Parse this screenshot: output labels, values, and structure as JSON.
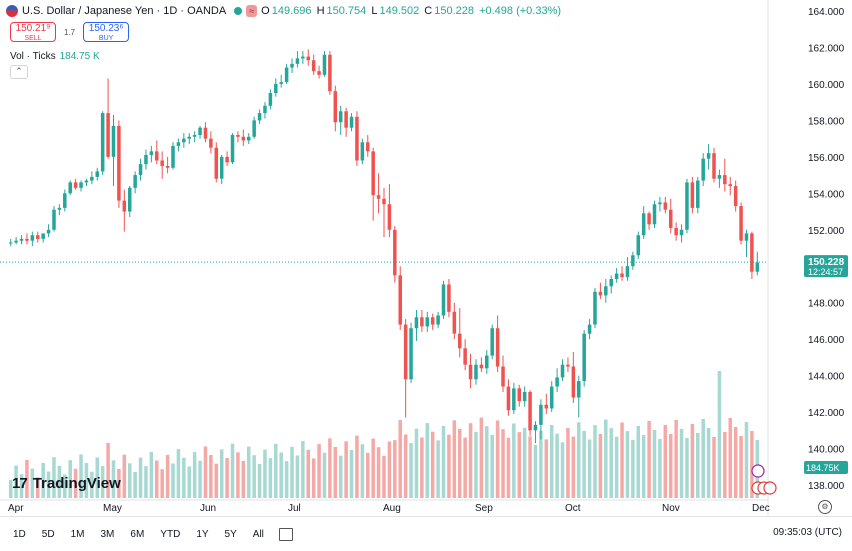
{
  "header": {
    "title": "U.S. Dollar / Japanese Yen · 1D · OANDA",
    "open_label": "O",
    "open": "149.696",
    "high_label": "H",
    "high": "150.754",
    "low_label": "L",
    "low": "149.502",
    "close_label": "C",
    "close": "150.228",
    "change": "+0.498 (+0.33%)"
  },
  "trade": {
    "sell_price": "150.21⁹",
    "sell_label": "SELL",
    "spread": "1.7",
    "buy_price": "150.23⁶",
    "buy_label": "BUY"
  },
  "volume_legend": {
    "label": "Vol · Ticks",
    "value": "184.75 K"
  },
  "brand": "TradingView",
  "timeframes": [
    "1D",
    "5D",
    "1M",
    "3M",
    "6M",
    "YTD",
    "1Y",
    "5Y",
    "All"
  ],
  "clock": "09:35:03 (UTC)",
  "colors": {
    "up": "#26a69a",
    "down": "#ef5350",
    "vol_up": "#a7d8d2",
    "vol_down": "#f5a9a7",
    "price_line": "#26a69a"
  },
  "chart_data": {
    "type": "candlestick",
    "title": "U.S. Dollar / Japanese Yen · 1D · OANDA",
    "price_axis": {
      "ticks": [
        138,
        140,
        142,
        144,
        146,
        148,
        150,
        152,
        154,
        156,
        158,
        160,
        162,
        164
      ],
      "range": [
        137,
        164.5
      ]
    },
    "x_ticks": [
      "Apr",
      "May",
      "Jun",
      "Jul",
      "Aug",
      "Sep",
      "Oct",
      "Nov",
      "Dec"
    ],
    "last_price": {
      "value": "150.228",
      "countdown": "12:24:57"
    },
    "volume_last": "184.75K",
    "candles": [
      {
        "o": 151.3,
        "h": 151.5,
        "l": 151.1,
        "c": 151.3
      },
      {
        "o": 151.3,
        "h": 151.6,
        "l": 151.2,
        "c": 151.4
      },
      {
        "o": 151.4,
        "h": 151.7,
        "l": 151.2,
        "c": 151.5
      },
      {
        "o": 151.5,
        "h": 151.8,
        "l": 151.2,
        "c": 151.4
      },
      {
        "o": 151.4,
        "h": 151.9,
        "l": 151.1,
        "c": 151.7
      },
      {
        "o": 151.7,
        "h": 151.9,
        "l": 151.3,
        "c": 151.5
      },
      {
        "o": 151.5,
        "h": 151.8,
        "l": 151.3,
        "c": 151.8
      },
      {
        "o": 151.8,
        "h": 152.3,
        "l": 151.6,
        "c": 152.0
      },
      {
        "o": 152.0,
        "h": 153.3,
        "l": 151.9,
        "c": 153.1
      },
      {
        "o": 153.1,
        "h": 153.4,
        "l": 152.8,
        "c": 153.2
      },
      {
        "o": 153.2,
        "h": 154.2,
        "l": 153.0,
        "c": 154.0
      },
      {
        "o": 154.0,
        "h": 154.7,
        "l": 153.9,
        "c": 154.6
      },
      {
        "o": 154.6,
        "h": 154.8,
        "l": 154.2,
        "c": 154.3
      },
      {
        "o": 154.3,
        "h": 154.7,
        "l": 154.1,
        "c": 154.6
      },
      {
        "o": 154.6,
        "h": 154.8,
        "l": 154.4,
        "c": 154.7
      },
      {
        "o": 154.7,
        "h": 155.2,
        "l": 154.5,
        "c": 154.9
      },
      {
        "o": 154.9,
        "h": 155.4,
        "l": 154.7,
        "c": 155.2
      },
      {
        "o": 155.2,
        "h": 158.5,
        "l": 155.0,
        "c": 158.4
      },
      {
        "o": 158.4,
        "h": 160.3,
        "l": 155.9,
        "c": 156.0
      },
      {
        "o": 156.0,
        "h": 158.3,
        "l": 154.4,
        "c": 157.7
      },
      {
        "o": 157.7,
        "h": 158.0,
        "l": 153.2,
        "c": 153.6
      },
      {
        "o": 153.6,
        "h": 154.2,
        "l": 151.9,
        "c": 153.0
      },
      {
        "o": 153.0,
        "h": 154.4,
        "l": 152.7,
        "c": 154.3
      },
      {
        "o": 154.3,
        "h": 155.2,
        "l": 154.0,
        "c": 155.0
      },
      {
        "o": 155.0,
        "h": 155.9,
        "l": 154.7,
        "c": 155.6
      },
      {
        "o": 155.6,
        "h": 156.4,
        "l": 155.3,
        "c": 156.1
      },
      {
        "o": 156.1,
        "h": 156.6,
        "l": 155.7,
        "c": 156.3
      },
      {
        "o": 156.3,
        "h": 156.9,
        "l": 155.6,
        "c": 155.8
      },
      {
        "o": 155.8,
        "h": 156.3,
        "l": 154.8,
        "c": 155.5
      },
      {
        "o": 155.5,
        "h": 156.0,
        "l": 155.1,
        "c": 155.4
      },
      {
        "o": 155.4,
        "h": 156.8,
        "l": 155.3,
        "c": 156.6
      },
      {
        "o": 156.6,
        "h": 157.0,
        "l": 156.3,
        "c": 156.8
      },
      {
        "o": 156.8,
        "h": 157.3,
        "l": 156.5,
        "c": 157.0
      },
      {
        "o": 157.0,
        "h": 157.3,
        "l": 156.7,
        "c": 157.1
      },
      {
        "o": 157.1,
        "h": 157.4,
        "l": 156.8,
        "c": 157.2
      },
      {
        "o": 157.2,
        "h": 157.7,
        "l": 157.0,
        "c": 157.6
      },
      {
        "o": 157.6,
        "h": 157.9,
        "l": 156.8,
        "c": 157.0
      },
      {
        "o": 157.0,
        "h": 157.4,
        "l": 156.2,
        "c": 156.5
      },
      {
        "o": 156.5,
        "h": 156.8,
        "l": 154.6,
        "c": 154.8
      },
      {
        "o": 154.8,
        "h": 156.1,
        "l": 154.5,
        "c": 156.0
      },
      {
        "o": 156.0,
        "h": 156.3,
        "l": 155.5,
        "c": 155.7
      },
      {
        "o": 155.7,
        "h": 157.3,
        "l": 155.6,
        "c": 157.2
      },
      {
        "o": 157.2,
        "h": 157.4,
        "l": 156.8,
        "c": 157.1
      },
      {
        "o": 157.1,
        "h": 157.5,
        "l": 156.6,
        "c": 156.9
      },
      {
        "o": 156.9,
        "h": 157.3,
        "l": 156.7,
        "c": 157.1
      },
      {
        "o": 157.1,
        "h": 158.2,
        "l": 157.0,
        "c": 158.0
      },
      {
        "o": 158.0,
        "h": 158.6,
        "l": 157.8,
        "c": 158.4
      },
      {
        "o": 158.4,
        "h": 159.0,
        "l": 158.1,
        "c": 158.8
      },
      {
        "o": 158.8,
        "h": 159.7,
        "l": 158.6,
        "c": 159.5
      },
      {
        "o": 159.5,
        "h": 160.3,
        "l": 159.3,
        "c": 160.0
      },
      {
        "o": 160.0,
        "h": 160.5,
        "l": 159.8,
        "c": 160.1
      },
      {
        "o": 160.1,
        "h": 161.1,
        "l": 160.0,
        "c": 160.9
      },
      {
        "o": 160.9,
        "h": 161.4,
        "l": 160.6,
        "c": 161.1
      },
      {
        "o": 161.1,
        "h": 161.8,
        "l": 160.9,
        "c": 161.4
      },
      {
        "o": 161.4,
        "h": 161.8,
        "l": 161.1,
        "c": 161.5
      },
      {
        "o": 161.5,
        "h": 161.9,
        "l": 161.0,
        "c": 161.3
      },
      {
        "o": 161.3,
        "h": 161.6,
        "l": 160.5,
        "c": 160.7
      },
      {
        "o": 160.7,
        "h": 161.0,
        "l": 160.3,
        "c": 160.5
      },
      {
        "o": 160.5,
        "h": 161.8,
        "l": 160.4,
        "c": 161.6
      },
      {
        "o": 161.6,
        "h": 161.8,
        "l": 159.4,
        "c": 159.6
      },
      {
        "o": 159.6,
        "h": 159.9,
        "l": 157.4,
        "c": 157.9
      },
      {
        "o": 157.9,
        "h": 158.8,
        "l": 157.2,
        "c": 158.5
      },
      {
        "o": 158.5,
        "h": 158.7,
        "l": 157.1,
        "c": 157.6
      },
      {
        "o": 157.6,
        "h": 158.4,
        "l": 157.4,
        "c": 158.2
      },
      {
        "o": 158.2,
        "h": 158.5,
        "l": 155.5,
        "c": 155.8
      },
      {
        "o": 155.8,
        "h": 157.0,
        "l": 155.6,
        "c": 156.8
      },
      {
        "o": 156.8,
        "h": 157.2,
        "l": 156.0,
        "c": 156.3
      },
      {
        "o": 156.3,
        "h": 156.5,
        "l": 152.5,
        "c": 153.9
      },
      {
        "o": 153.9,
        "h": 155.1,
        "l": 152.9,
        "c": 153.7
      },
      {
        "o": 153.7,
        "h": 154.3,
        "l": 151.6,
        "c": 153.4
      },
      {
        "o": 153.4,
        "h": 154.5,
        "l": 151.6,
        "c": 152.0
      },
      {
        "o": 152.0,
        "h": 152.2,
        "l": 149.1,
        "c": 149.5
      },
      {
        "o": 149.5,
        "h": 150.0,
        "l": 146.5,
        "c": 146.8
      },
      {
        "o": 146.8,
        "h": 147.1,
        "l": 141.7,
        "c": 143.8
      },
      {
        "o": 143.8,
        "h": 146.9,
        "l": 143.6,
        "c": 146.6
      },
      {
        "o": 146.6,
        "h": 147.6,
        "l": 145.9,
        "c": 147.2
      },
      {
        "o": 147.2,
        "h": 147.6,
        "l": 146.4,
        "c": 146.7
      },
      {
        "o": 146.7,
        "h": 147.5,
        "l": 146.4,
        "c": 147.2
      },
      {
        "o": 147.2,
        "h": 147.4,
        "l": 146.5,
        "c": 146.8
      },
      {
        "o": 146.8,
        "h": 147.5,
        "l": 146.6,
        "c": 147.3
      },
      {
        "o": 147.3,
        "h": 149.2,
        "l": 147.1,
        "c": 149.0
      },
      {
        "o": 149.0,
        "h": 149.3,
        "l": 147.2,
        "c": 147.5
      },
      {
        "o": 147.5,
        "h": 148.0,
        "l": 146.0,
        "c": 146.3
      },
      {
        "o": 146.3,
        "h": 147.7,
        "l": 145.0,
        "c": 145.5
      },
      {
        "o": 145.5,
        "h": 146.0,
        "l": 144.3,
        "c": 144.6
      },
      {
        "o": 144.6,
        "h": 145.2,
        "l": 143.3,
        "c": 143.8
      },
      {
        "o": 143.8,
        "h": 144.9,
        "l": 143.5,
        "c": 144.6
      },
      {
        "o": 144.6,
        "h": 145.0,
        "l": 144.2,
        "c": 144.4
      },
      {
        "o": 144.4,
        "h": 145.4,
        "l": 144.1,
        "c": 145.1
      },
      {
        "o": 145.1,
        "h": 146.8,
        "l": 144.9,
        "c": 146.6
      },
      {
        "o": 146.6,
        "h": 147.3,
        "l": 144.2,
        "c": 144.5
      },
      {
        "o": 144.5,
        "h": 145.1,
        "l": 143.1,
        "c": 143.4
      },
      {
        "o": 143.4,
        "h": 143.8,
        "l": 141.8,
        "c": 142.1
      },
      {
        "o": 142.1,
        "h": 143.6,
        "l": 141.9,
        "c": 143.3
      },
      {
        "o": 143.3,
        "h": 143.5,
        "l": 142.3,
        "c": 142.6
      },
      {
        "o": 142.6,
        "h": 143.4,
        "l": 142.3,
        "c": 143.1
      },
      {
        "o": 143.1,
        "h": 143.2,
        "l": 140.7,
        "c": 141.0
      },
      {
        "o": 141.0,
        "h": 141.5,
        "l": 140.3,
        "c": 141.3
      },
      {
        "o": 141.3,
        "h": 142.7,
        "l": 140.5,
        "c": 142.4
      },
      {
        "o": 142.4,
        "h": 143.0,
        "l": 141.9,
        "c": 142.2
      },
      {
        "o": 142.2,
        "h": 143.7,
        "l": 142.0,
        "c": 143.4
      },
      {
        "o": 143.4,
        "h": 144.4,
        "l": 143.1,
        "c": 143.9
      },
      {
        "o": 143.9,
        "h": 144.9,
        "l": 143.7,
        "c": 144.6
      },
      {
        "o": 144.6,
        "h": 145.0,
        "l": 144.2,
        "c": 144.5
      },
      {
        "o": 144.5,
        "h": 145.3,
        "l": 142.5,
        "c": 142.8
      },
      {
        "o": 142.8,
        "h": 144.0,
        "l": 141.7,
        "c": 143.7
      },
      {
        "o": 143.7,
        "h": 146.5,
        "l": 143.4,
        "c": 146.3
      },
      {
        "o": 146.3,
        "h": 147.1,
        "l": 146.0,
        "c": 146.8
      },
      {
        "o": 146.8,
        "h": 148.8,
        "l": 146.6,
        "c": 148.6
      },
      {
        "o": 148.6,
        "h": 149.1,
        "l": 148.2,
        "c": 148.4
      },
      {
        "o": 148.4,
        "h": 149.3,
        "l": 148.0,
        "c": 148.9
      },
      {
        "o": 148.9,
        "h": 149.5,
        "l": 148.5,
        "c": 149.3
      },
      {
        "o": 149.3,
        "h": 149.9,
        "l": 149.1,
        "c": 149.6
      },
      {
        "o": 149.6,
        "h": 150.0,
        "l": 149.2,
        "c": 149.4
      },
      {
        "o": 149.4,
        "h": 150.5,
        "l": 149.2,
        "c": 150.0
      },
      {
        "o": 150.0,
        "h": 150.8,
        "l": 149.8,
        "c": 150.6
      },
      {
        "o": 150.6,
        "h": 151.9,
        "l": 150.4,
        "c": 151.7
      },
      {
        "o": 151.7,
        "h": 153.3,
        "l": 151.5,
        "c": 152.9
      },
      {
        "o": 152.9,
        "h": 153.0,
        "l": 152.0,
        "c": 152.3
      },
      {
        "o": 152.3,
        "h": 153.6,
        "l": 152.1,
        "c": 153.4
      },
      {
        "o": 153.4,
        "h": 153.8,
        "l": 153.0,
        "c": 153.5
      },
      {
        "o": 153.5,
        "h": 153.8,
        "l": 152.9,
        "c": 153.1
      },
      {
        "o": 153.1,
        "h": 153.7,
        "l": 151.8,
        "c": 152.1
      },
      {
        "o": 152.1,
        "h": 152.4,
        "l": 151.4,
        "c": 151.7
      },
      {
        "o": 151.7,
        "h": 152.3,
        "l": 151.3,
        "c": 152.0
      },
      {
        "o": 152.0,
        "h": 154.8,
        "l": 151.8,
        "c": 154.6
      },
      {
        "o": 154.6,
        "h": 154.9,
        "l": 152.9,
        "c": 153.2
      },
      {
        "o": 153.2,
        "h": 154.9,
        "l": 152.9,
        "c": 154.7
      },
      {
        "o": 154.7,
        "h": 156.2,
        "l": 154.4,
        "c": 155.9
      },
      {
        "o": 155.9,
        "h": 156.7,
        "l": 155.3,
        "c": 156.2
      },
      {
        "o": 156.2,
        "h": 156.5,
        "l": 154.6,
        "c": 154.8
      },
      {
        "o": 154.8,
        "h": 155.3,
        "l": 154.3,
        "c": 155.0
      },
      {
        "o": 155.0,
        "h": 155.9,
        "l": 154.1,
        "c": 154.5
      },
      {
        "o": 154.5,
        "h": 154.9,
        "l": 153.9,
        "c": 154.4
      },
      {
        "o": 154.4,
        "h": 154.7,
        "l": 153.0,
        "c": 153.3
      },
      {
        "o": 153.3,
        "h": 153.5,
        "l": 151.2,
        "c": 151.4
      },
      {
        "o": 151.4,
        "h": 152.0,
        "l": 150.5,
        "c": 151.8
      },
      {
        "o": 151.8,
        "h": 151.9,
        "l": 149.3,
        "c": 149.7
      },
      {
        "o": 149.7,
        "h": 150.8,
        "l": 149.5,
        "c": 150.2
      }
    ]
  }
}
